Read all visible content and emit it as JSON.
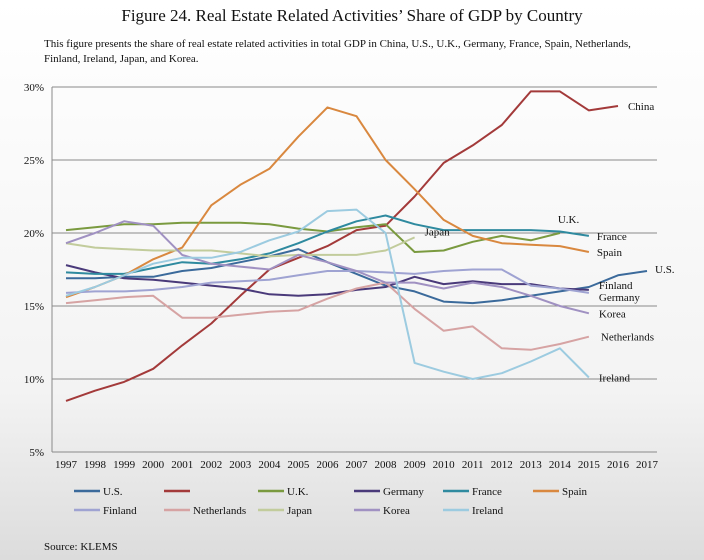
{
  "title": "Figure 24. Real Estate Related Activities’ Share of GDP by Country",
  "subtitle": "This figure presents the share of real estate related activities in total GDP in China, U.S., U.K., Germany, France, Spain, Netherlands, Finland, Ireland, Japan, and Korea.",
  "source": "Source: KLEMS",
  "chart_data": {
    "type": "line",
    "x": [
      1997,
      1998,
      1999,
      2000,
      2001,
      2002,
      2003,
      2004,
      2005,
      2006,
      2007,
      2008,
      2009,
      2010,
      2011,
      2012,
      2013,
      2014,
      2015,
      2016,
      2017
    ],
    "ylim": [
      5,
      30
    ],
    "yticks": [
      "5%",
      "10%",
      "15%",
      "20%",
      "25%",
      "30%"
    ],
    "xticks": [
      "1997",
      "1998",
      "1999",
      "2000",
      "2001",
      "2002",
      "2003",
      "2004",
      "2005",
      "2006",
      "2007",
      "2008",
      "2009",
      "2010",
      "2011",
      "2012",
      "2013",
      "2014",
      "2015",
      "2016",
      "2017"
    ],
    "grid": true,
    "series": [
      {
        "name": "U.S.",
        "legend": "U.S.",
        "label": "U.S.",
        "color": "#3b6a9b",
        "values": [
          16.9,
          16.9,
          17.0,
          17.0,
          17.4,
          17.6,
          18.0,
          18.4,
          18.9,
          18.0,
          17.2,
          16.4,
          16.0,
          15.3,
          15.2,
          15.4,
          15.7,
          16.0,
          16.3,
          17.1,
          17.4
        ]
      },
      {
        "name": "China",
        "legend": "",
        "label": "China",
        "color": "#a33a3a",
        "values": [
          8.5,
          9.2,
          9.8,
          10.7,
          12.3,
          13.8,
          15.7,
          17.5,
          18.3,
          19.1,
          20.2,
          20.5,
          22.5,
          24.8,
          26.0,
          27.4,
          29.7,
          29.7,
          28.4,
          28.7,
          null
        ]
      },
      {
        "name": "U.K.",
        "legend": "U.K.",
        "label": "U.K.",
        "color": "#7a9a3f",
        "values": [
          20.2,
          20.4,
          20.6,
          20.6,
          20.7,
          20.7,
          20.7,
          20.6,
          20.3,
          20.1,
          20.4,
          20.6,
          18.7,
          18.8,
          19.4,
          19.8,
          19.5,
          20.0,
          null,
          null,
          null
        ]
      },
      {
        "name": "Germany",
        "legend": "Germany",
        "label": "Germany",
        "color": "#4a3a7a",
        "values": [
          17.8,
          17.3,
          16.9,
          16.8,
          16.6,
          16.4,
          16.2,
          15.8,
          15.7,
          15.8,
          16.1,
          16.3,
          17.0,
          16.5,
          16.7,
          16.5,
          16.5,
          16.2,
          16.1,
          null,
          null
        ]
      },
      {
        "name": "France",
        "legend": "France",
        "label": "France",
        "color": "#2f8a9f",
        "values": [
          17.3,
          17.2,
          17.2,
          17.6,
          18.0,
          17.9,
          18.2,
          18.6,
          19.3,
          20.1,
          20.8,
          21.2,
          20.6,
          20.2,
          20.2,
          20.2,
          20.2,
          20.1,
          19.8,
          null,
          null
        ]
      },
      {
        "name": "Spain",
        "legend": "Spain",
        "label": "Spain",
        "color": "#d9883f",
        "values": [
          15.6,
          16.3,
          17.1,
          18.2,
          19.0,
          21.9,
          23.3,
          24.4,
          26.6,
          28.6,
          28.0,
          25.0,
          23.0,
          20.9,
          19.8,
          19.3,
          19.2,
          19.1,
          18.7,
          null,
          null
        ]
      },
      {
        "name": "Finland",
        "legend": "Finland",
        "label": "Finland",
        "color": "#9fa3d2",
        "values": [
          15.9,
          16.0,
          16.0,
          16.1,
          16.3,
          16.6,
          16.7,
          16.8,
          17.1,
          17.4,
          17.4,
          17.3,
          17.2,
          17.4,
          17.5,
          17.5,
          16.4,
          16.2,
          15.9,
          null,
          null
        ]
      },
      {
        "name": "Netherlands",
        "legend": "Netherlands",
        "label": "Netherlands",
        "color": "#d6a3a3",
        "values": [
          15.2,
          15.4,
          15.6,
          15.7,
          14.2,
          14.2,
          14.4,
          14.6,
          14.7,
          15.5,
          16.2,
          16.6,
          14.8,
          13.3,
          13.6,
          12.1,
          12.0,
          12.4,
          12.9,
          null,
          null
        ]
      },
      {
        "name": "Japan",
        "legend": "Japan",
        "label": "Japan",
        "color": "#c2cc9c",
        "values": [
          19.3,
          19.0,
          18.9,
          18.8,
          18.8,
          18.8,
          18.6,
          18.4,
          18.5,
          18.5,
          18.5,
          18.8,
          19.7,
          null,
          null,
          null,
          null,
          null,
          null,
          null,
          null
        ]
      },
      {
        "name": "Korea",
        "legend": "Korea",
        "label": "Korea",
        "color": "#a091c2",
        "values": [
          19.3,
          20.0,
          20.8,
          20.5,
          18.5,
          17.9,
          17.7,
          17.5,
          18.5,
          18.0,
          17.4,
          16.6,
          16.6,
          16.2,
          16.6,
          16.3,
          15.7,
          15.0,
          14.5,
          null,
          null
        ]
      },
      {
        "name": "Ireland",
        "legend": "Ireland",
        "label": "Ireland",
        "color": "#9ccbe0",
        "values": [
          15.7,
          16.3,
          17.1,
          17.9,
          18.3,
          18.3,
          18.7,
          19.5,
          20.1,
          21.5,
          21.6,
          20.0,
          11.1,
          10.5,
          10.0,
          10.4,
          11.2,
          12.1,
          10.1,
          null,
          null
        ]
      }
    ]
  }
}
